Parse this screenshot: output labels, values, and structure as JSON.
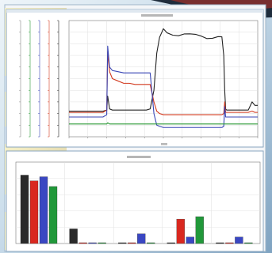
{
  "chart_data": [
    {
      "type": "line",
      "title": "",
      "xlabel": "",
      "ylabel": "",
      "xlim": [
        0,
        10
      ],
      "ylim": [
        0,
        100
      ],
      "grid": true,
      "x": [
        0,
        0.3,
        0.6,
        0.9,
        1.2,
        1.5,
        1.8,
        2.0,
        2.05,
        2.15,
        2.3,
        2.6,
        2.9,
        3.2,
        3.5,
        3.8,
        4.1,
        4.3,
        4.5,
        4.65,
        4.8,
        5.0,
        5.2,
        5.5,
        5.8,
        6.1,
        6.4,
        6.7,
        7.0,
        7.3,
        7.6,
        7.9,
        8.1,
        8.2,
        8.25,
        8.3,
        8.35,
        8.6,
        8.9,
        9.2,
        9.5,
        9.7,
        9.85,
        10
      ],
      "series": [
        {
          "color": "#222222",
          "values": [
            22,
            22,
            22,
            22,
            22,
            22,
            22,
            23,
            35,
            24,
            23,
            23,
            23,
            23,
            23,
            23,
            23,
            24,
            40,
            72,
            84,
            92,
            90,
            89,
            88,
            88,
            87,
            87,
            87,
            86,
            86,
            86,
            86,
            70,
            40,
            24,
            23,
            23,
            23,
            23,
            23,
            30,
            27,
            27
          ]
        },
        {
          "color": "#d23a1f",
          "values": [
            21,
            21,
            21,
            21,
            21,
            21,
            21,
            23,
            73,
            56,
            50,
            48,
            46,
            46,
            45,
            45,
            45,
            45,
            30,
            22,
            20,
            19,
            19,
            19,
            19,
            19,
            19,
            19,
            19,
            19,
            19,
            19,
            19,
            20,
            30,
            21,
            21,
            21,
            21,
            21,
            21,
            22,
            21,
            21
          ]
        },
        {
          "color": "#3946b5",
          "values": [
            17,
            17,
            17,
            17,
            17,
            17,
            17,
            19,
            78,
            60,
            57,
            56,
            55,
            55,
            55,
            55,
            55,
            55,
            20,
            10,
            9,
            8,
            8,
            8,
            8,
            8,
            8,
            8,
            8,
            8,
            8,
            8,
            8,
            9,
            26,
            17,
            17,
            17,
            17,
            17,
            17,
            17,
            17,
            17
          ]
        },
        {
          "color": "#2c9a37",
          "values": [
            11,
            11,
            11,
            11,
            11,
            11,
            11,
            11,
            12,
            11,
            11,
            11,
            11,
            11,
            11,
            11,
            11,
            11,
            11,
            11,
            11,
            11,
            11,
            11,
            11,
            11,
            11,
            11,
            11,
            11,
            11,
            11,
            11,
            11,
            11,
            11,
            11,
            11,
            11,
            11,
            11,
            11,
            11,
            11
          ]
        }
      ]
    },
    {
      "type": "bar",
      "title": "",
      "xlabel": "",
      "ylabel": "",
      "ylim": [
        0,
        100
      ],
      "grid": true,
      "categories": [
        "",
        "",
        "",
        "",
        ""
      ],
      "series": [
        {
          "color": "#2a2a2a",
          "values": [
            84,
            18,
            1,
            1,
            1
          ]
        },
        {
          "color": "#d9281f",
          "values": [
            77,
            1,
            1,
            30,
            1
          ]
        },
        {
          "color": "#3a47c2",
          "values": [
            82,
            1,
            12,
            8,
            8
          ]
        },
        {
          "color": "#21983a",
          "values": [
            70,
            1,
            1,
            33,
            1
          ]
        }
      ]
    }
  ]
}
